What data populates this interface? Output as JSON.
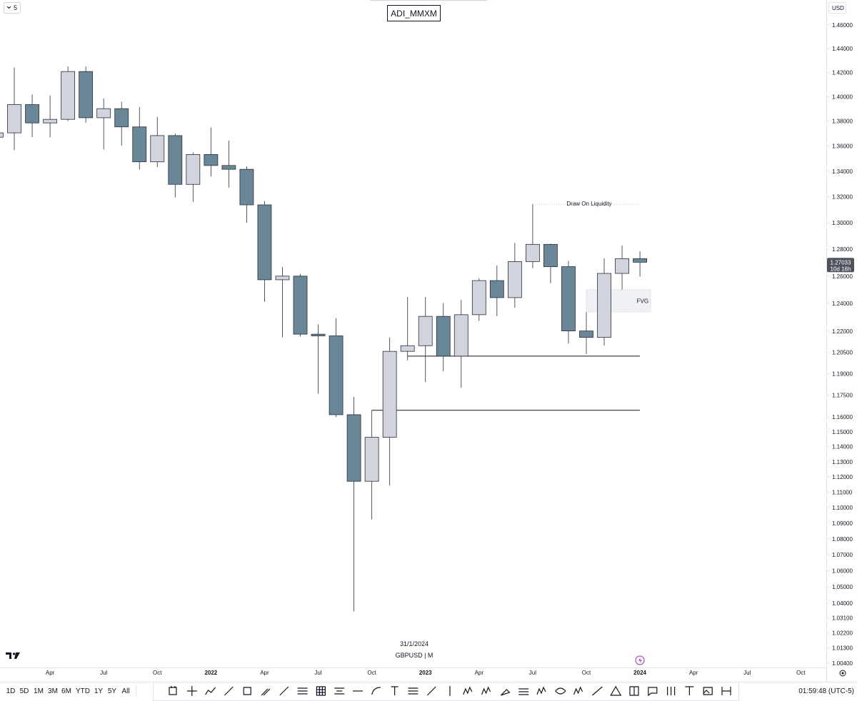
{
  "chart_data": {
    "type": "candlestick",
    "title": "ADI_MMXM",
    "symbol": "GBPUSD | M",
    "date": "31/1/2024",
    "currency": "USD",
    "log": true,
    "up_color": "#d1d4dc",
    "down_color": "#6a8797",
    "border_color": "#2a2e39",
    "x": [
      "2021-01",
      "2021-02",
      "2021-03",
      "2021-04",
      "2021-05",
      "2021-06",
      "2021-07",
      "2021-08",
      "2021-09",
      "2021-10",
      "2021-11",
      "2021-12",
      "2022-01",
      "2022-02",
      "2022-03",
      "2022-04",
      "2022-05",
      "2022-06",
      "2022-07",
      "2022-08",
      "2022-09",
      "2022-10",
      "2022-11",
      "2022-12",
      "2023-01",
      "2023-02",
      "2023-03",
      "2023-04",
      "2023-05",
      "2023-06",
      "2023-07",
      "2023-08",
      "2023-09",
      "2023-10",
      "2023-11",
      "2023-12",
      "2024-01"
    ],
    "open": [
      1.367,
      1.3705,
      1.3934,
      1.3785,
      1.3814,
      1.4207,
      1.3827,
      1.3901,
      1.3753,
      1.3474,
      1.3683,
      1.3297,
      1.3532,
      1.3445,
      1.3415,
      1.3138,
      1.2573,
      1.26,
      1.2178,
      1.2166,
      1.1616,
      1.1171,
      1.1463,
      1.2056,
      1.2096,
      1.2306,
      1.2022,
      1.2318,
      1.2567,
      1.2442,
      1.2708,
      1.2837,
      1.267,
      1.2201,
      1.2155,
      1.262,
      1.273
    ],
    "high": [
      1.376,
      1.4241,
      1.4017,
      1.4009,
      1.425,
      1.4249,
      1.3984,
      1.3958,
      1.3913,
      1.3834,
      1.3698,
      1.3549,
      1.3749,
      1.3643,
      1.3438,
      1.3167,
      1.2667,
      1.2617,
      1.2247,
      1.2293,
      1.1738,
      1.1646,
      1.2154,
      1.2447,
      1.2448,
      1.2402,
      1.2425,
      1.2584,
      1.268,
      1.2848,
      1.3142,
      1.2842,
      1.2713,
      1.2337,
      1.2733,
      1.2828,
      1.2785
    ],
    "low": [
      1.345,
      1.3566,
      1.3671,
      1.3669,
      1.38,
      1.3787,
      1.3572,
      1.3602,
      1.3412,
      1.3433,
      1.3195,
      1.3161,
      1.3358,
      1.3272,
      1.3,
      1.2411,
      1.2155,
      1.216,
      1.176,
      1.16,
      1.035,
      1.0924,
      1.1143,
      1.1992,
      1.1841,
      1.1915,
      1.1802,
      1.2274,
      1.2308,
      1.2369,
      1.2659,
      1.2548,
      1.2111,
      1.2037,
      1.2096,
      1.25,
      1.2597
    ],
    "close": [
      1.3705,
      1.3934,
      1.3785,
      1.3814,
      1.4207,
      1.3827,
      1.3901,
      1.3753,
      1.3474,
      1.3683,
      1.3297,
      1.3532,
      1.3445,
      1.3415,
      1.3138,
      1.2573,
      1.26,
      1.2178,
      1.2166,
      1.1616,
      1.1171,
      1.1463,
      1.2056,
      1.2096,
      1.2306,
      1.2022,
      1.2318,
      1.2567,
      1.2442,
      1.2708,
      1.2837,
      1.267,
      1.2201,
      1.2155,
      1.262,
      1.273,
      1.2703
    ],
    "ylim": [
      1.0015,
      1.4816
    ],
    "yticks": [
      {
        "value": 1.46,
        "label": "1.46000"
      },
      {
        "value": 1.44,
        "label": "1.44000"
      },
      {
        "value": 1.42,
        "label": "1.42000"
      },
      {
        "value": 1.4,
        "label": "1.40000"
      },
      {
        "value": 1.38,
        "label": "1.38000"
      },
      {
        "value": 1.36,
        "label": "1.36000"
      },
      {
        "value": 1.34,
        "label": "1.34000"
      },
      {
        "value": 1.32,
        "label": "1.32000"
      },
      {
        "value": 1.3,
        "label": "1.30000"
      },
      {
        "value": 1.28,
        "label": "1.28000"
      },
      {
        "value": 1.26,
        "label": "1.26000"
      },
      {
        "value": 1.24,
        "label": "1.24000"
      },
      {
        "value": 1.22,
        "label": "1.22000"
      },
      {
        "value": 1.205,
        "label": "1.20500"
      },
      {
        "value": 1.19,
        "label": "1.19000"
      },
      {
        "value": 1.175,
        "label": "1.17500"
      },
      {
        "value": 1.16,
        "label": "1.16000"
      },
      {
        "value": 1.15,
        "label": "1.15000"
      },
      {
        "value": 1.14,
        "label": "1.14000"
      },
      {
        "value": 1.13,
        "label": "1.13000"
      },
      {
        "value": 1.12,
        "label": "1.12000"
      },
      {
        "value": 1.11,
        "label": "1.11000"
      },
      {
        "value": 1.1,
        "label": "1.10000"
      },
      {
        "value": 1.09,
        "label": "1.09000"
      },
      {
        "value": 1.08,
        "label": "1.08000"
      },
      {
        "value": 1.07,
        "label": "1.07000"
      },
      {
        "value": 1.06,
        "label": "1.06000"
      },
      {
        "value": 1.05,
        "label": "1.05000"
      },
      {
        "value": 1.04,
        "label": "1.04000"
      },
      {
        "value": 1.031,
        "label": "1.03100"
      },
      {
        "value": 1.022,
        "label": "1.02200"
      },
      {
        "value": 1.013,
        "label": "1.01300"
      },
      {
        "value": 1.004,
        "label": "1.00400"
      }
    ],
    "xticks": [
      {
        "value": "2021-04",
        "label": "Apr"
      },
      {
        "value": "2021-07",
        "label": "Jul"
      },
      {
        "value": "2021-10",
        "label": "Oct"
      },
      {
        "value": "2022-01",
        "label": "2022"
      },
      {
        "value": "2022-04",
        "label": "Apr"
      },
      {
        "value": "2022-07",
        "label": "Jul"
      },
      {
        "value": "2022-10",
        "label": "Oct"
      },
      {
        "value": "2023-01",
        "label": "2023"
      },
      {
        "value": "2023-04",
        "label": "Apr"
      },
      {
        "value": "2023-07",
        "label": "Jul"
      },
      {
        "value": "2023-10",
        "label": "Oct"
      },
      {
        "value": "2024-01",
        "label": "2024"
      },
      {
        "value": "2024-04",
        "label": "Apr"
      },
      {
        "value": "2024-07",
        "label": "Jul"
      },
      {
        "value": "2024-10",
        "label": "Oct"
      }
    ],
    "last_price": 1.27033,
    "countdown": "10d 16h",
    "liquidity": {
      "text": "Draw On Liquidity",
      "value": 1.3142,
      "from": "2023-07",
      "to": "2024-01"
    },
    "fvg": {
      "text": "FVG",
      "low": 1.2337,
      "high": 1.25,
      "from": "2023-10",
      "to": "2024-02"
    },
    "levels": [
      {
        "value": 1.2022,
        "from": "2022-12",
        "to": "2024-01"
      },
      {
        "value": 1.1646,
        "from": "2022-10",
        "to": "2024-01"
      }
    ]
  },
  "toolbar": {
    "interval": "5",
    "ranges": [
      "1D",
      "5D",
      "1M",
      "3M",
      "6M",
      "YTD",
      "1Y",
      "5Y",
      "All"
    ],
    "clock": "01:59:48 (UTC-5)"
  }
}
